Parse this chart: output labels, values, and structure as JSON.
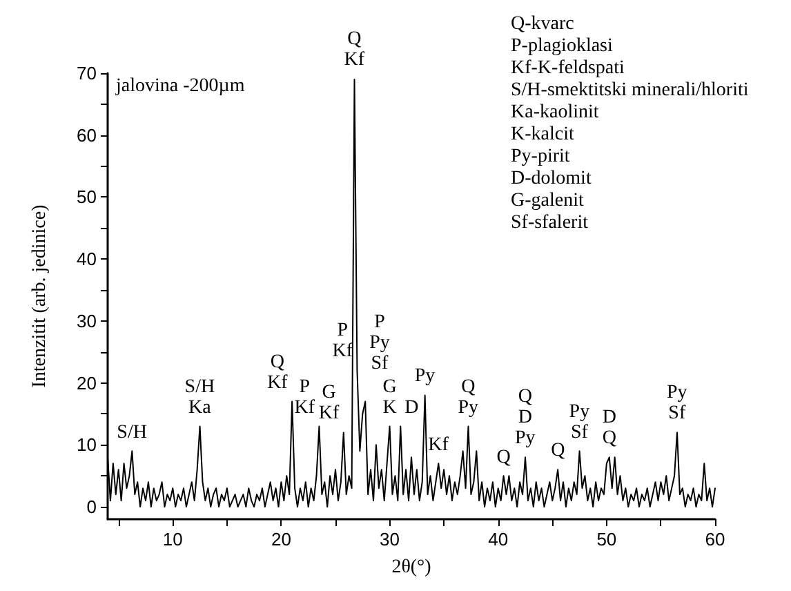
{
  "chart_data": {
    "type": "line",
    "xlabel": "2θ(°)",
    "ylabel": "Intenzitit (arb. jedinice)",
    "xlim": [
      4,
      60
    ],
    "ylim": [
      -2,
      70
    ],
    "xticks": [
      {
        "value": 5,
        "label": null
      },
      10,
      {
        "value": 15,
        "label": null
      },
      20,
      {
        "value": 25,
        "label": null
      },
      30,
      {
        "value": 35,
        "label": null
      },
      40,
      {
        "value": 45,
        "label": null
      },
      50,
      {
        "value": 55,
        "label": null
      },
      60
    ],
    "yticks": [
      0,
      {
        "value": 5,
        "label": null
      },
      10,
      {
        "value": 15,
        "label": null
      },
      20,
      {
        "value": 25,
        "label": null
      },
      30,
      {
        "value": 35,
        "label": null
      },
      40,
      {
        "value": 45,
        "label": null
      },
      50,
      {
        "value": 55,
        "label": null
      },
      60,
      {
        "value": 65,
        "label": null
      },
      70
    ],
    "grid": false,
    "marker": "none",
    "line_style": "solid",
    "series": [
      {
        "color": "#000000",
        "x": [
          4,
          4.25,
          4.5,
          4.75,
          5,
          5.25,
          5.5,
          5.75,
          6,
          6.25,
          6.5,
          6.75,
          7,
          7.25,
          7.5,
          7.75,
          8,
          8.25,
          8.5,
          8.75,
          9,
          9.25,
          9.5,
          9.75,
          10,
          10.25,
          10.5,
          10.75,
          11,
          11.25,
          11.5,
          11.75,
          12,
          12.25,
          12.5,
          12.75,
          13,
          13.25,
          13.5,
          13.75,
          14,
          14.25,
          14.5,
          14.75,
          15,
          15.25,
          15.5,
          15.75,
          16,
          16.25,
          16.5,
          16.75,
          17,
          17.25,
          17.5,
          17.75,
          18,
          18.25,
          18.5,
          18.75,
          19,
          19.25,
          19.5,
          19.75,
          20,
          20.25,
          20.5,
          20.75,
          21,
          21.25,
          21.5,
          21.75,
          22,
          22.25,
          22.5,
          22.75,
          23,
          23.25,
          23.5,
          23.75,
          24,
          24.25,
          24.5,
          24.75,
          25,
          25.25,
          25.5,
          25.75,
          26,
          26.25,
          26.5,
          26.75,
          27,
          27.25,
          27.5,
          27.75,
          28,
          28.25,
          28.5,
          28.75,
          29,
          29.25,
          29.5,
          29.75,
          30,
          30.25,
          30.5,
          30.75,
          31,
          31.25,
          31.5,
          31.75,
          32,
          32.25,
          32.5,
          32.75,
          33,
          33.25,
          33.5,
          33.75,
          34,
          34.25,
          34.5,
          34.75,
          35,
          35.25,
          35.5,
          35.75,
          36,
          36.25,
          36.5,
          36.75,
          37,
          37.25,
          37.5,
          37.75,
          38,
          38.25,
          38.5,
          38.75,
          39,
          39.25,
          39.5,
          39.75,
          40,
          40.25,
          40.5,
          40.75,
          41,
          41.25,
          41.5,
          41.75,
          42,
          42.25,
          42.5,
          42.75,
          43,
          43.25,
          43.5,
          43.75,
          44,
          44.25,
          44.5,
          44.75,
          45,
          45.25,
          45.5,
          45.75,
          46,
          46.25,
          46.5,
          46.75,
          47,
          47.25,
          47.5,
          47.75,
          48,
          48.25,
          48.5,
          48.75,
          49,
          49.25,
          49.5,
          49.75,
          50,
          50.25,
          50.5,
          50.75,
          51,
          51.25,
          51.5,
          51.75,
          52,
          52.25,
          52.5,
          52.75,
          53,
          53.25,
          53.5,
          53.75,
          54,
          54.25,
          54.5,
          54.75,
          55,
          55.25,
          55.5,
          55.75,
          56,
          56.25,
          56.5,
          56.75,
          57,
          57.25,
          57.5,
          57.75,
          58,
          58.25,
          58.5,
          58.75,
          59,
          59.25,
          59.5,
          59.75,
          60
        ],
        "values": [
          8,
          1,
          7,
          2,
          6,
          1,
          7,
          3,
          5,
          9,
          2,
          4,
          0,
          3,
          1,
          4,
          0,
          3,
          1,
          2,
          4,
          0,
          2,
          1,
          3,
          0,
          2,
          1,
          3,
          0,
          2,
          4,
          1,
          6,
          13,
          4,
          1,
          3,
          0,
          2,
          3,
          0,
          2,
          1,
          3,
          0,
          1,
          2,
          0,
          1,
          2,
          0,
          3,
          1,
          0,
          2,
          1,
          3,
          0,
          2,
          4,
          1,
          3,
          0,
          4,
          1,
          5,
          2,
          17,
          3,
          0,
          3,
          1,
          4,
          0,
          3,
          1,
          5,
          13,
          2,
          4,
          0,
          5,
          2,
          6,
          1,
          4,
          12,
          2,
          5,
          3,
          69,
          22,
          9,
          15,
          17,
          2,
          6,
          1,
          10,
          3,
          6,
          1,
          7,
          13,
          2,
          5,
          1,
          13,
          2,
          6,
          1,
          8,
          2,
          6,
          1,
          4,
          18,
          2,
          5,
          1,
          4,
          7,
          3,
          6,
          2,
          5,
          1,
          4,
          2,
          5,
          9,
          3,
          13,
          2,
          4,
          9,
          1,
          4,
          0,
          3,
          1,
          4,
          0,
          3,
          1,
          5,
          2,
          5,
          1,
          3,
          0,
          4,
          2,
          8,
          1,
          3,
          0,
          4,
          1,
          3,
          0,
          2,
          4,
          1,
          3,
          6,
          1,
          4,
          0,
          3,
          1,
          4,
          2,
          9,
          3,
          5,
          1,
          3,
          0,
          4,
          1,
          3,
          2,
          7,
          8,
          3,
          8,
          2,
          5,
          1,
          3,
          0,
          2,
          1,
          3,
          0,
          2,
          1,
          3,
          0,
          2,
          4,
          1,
          4,
          2,
          5,
          1,
          3,
          5,
          12,
          2,
          3,
          0,
          2,
          1,
          3,
          0,
          2,
          1,
          7,
          1,
          3,
          0,
          3
        ]
      }
    ],
    "annotations": [
      "jalovina -200µm",
      "Q-kvarc",
      "P-plagioklasi",
      "Kf-K-feldspati",
      "S/H-smektitski minerali/hloriti",
      "Ka-kaolinit",
      "K-kalcit",
      "Py-pirit",
      "D-dolomit",
      "G-galenit",
      "Sf-sfalerit",
      {
        "text": "S/H",
        "x": 6.25,
        "y": 9
      },
      {
        "text": "S/H\nKa",
        "x": 12.5,
        "y": 13
      },
      {
        "text": "Q\nKf",
        "x": 21,
        "y": 17
      },
      {
        "text": "P\nKf",
        "x": 23.5,
        "y": 13
      },
      {
        "text": "G\nKf",
        "x": 25.75,
        "y": 12
      },
      {
        "text": "Q\nKf",
        "x": 26.75,
        "y": 69
      },
      {
        "text": "P\nKf",
        "x": 27,
        "y": 22
      },
      {
        "text": "P\nPy\nSf",
        "x": 27.75,
        "y": 17
      },
      {
        "text": "G\nK",
        "x": 30,
        "y": 13
      },
      {
        "text": "D",
        "x": 31,
        "y": 13
      },
      {
        "text": "Py",
        "x": 33.25,
        "y": 18
      },
      {
        "text": "Kf",
        "x": 34.5,
        "y": 7
      },
      {
        "text": "Q\nPy",
        "x": 37.25,
        "y": 13
      },
      {
        "text": "Q",
        "x": 40.5,
        "y": 5
      },
      {
        "text": "Q\nD\nPy",
        "x": 42.5,
        "y": 8
      },
      {
        "text": "Q",
        "x": 45.5,
        "y": 6
      },
      {
        "text": "Py\nSf",
        "x": 47.5,
        "y": 9
      },
      {
        "text": "D\nQ",
        "x": 50.25,
        "y": 8
      },
      {
        "text": "Py\nSf",
        "x": 56.5,
        "y": 12
      }
    ]
  }
}
